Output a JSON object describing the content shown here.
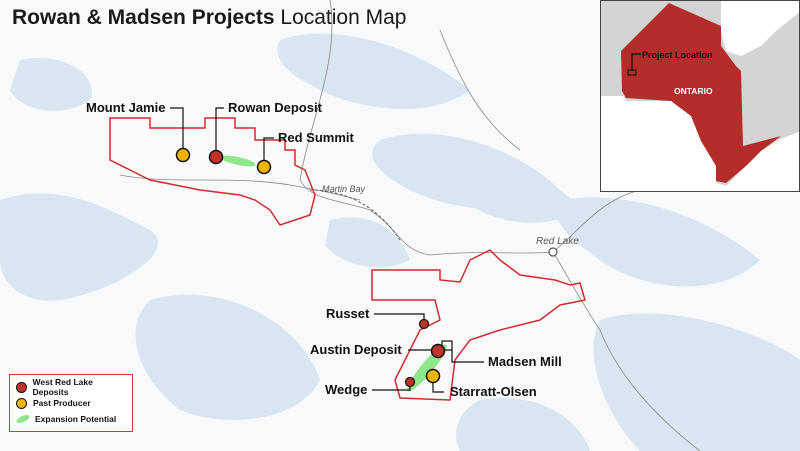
{
  "title": {
    "bold": "Rowan & Madsen Projects",
    "rest": " Location Map"
  },
  "colors": {
    "claims": "#d22b2b",
    "deposit": "#c0332b",
    "past_producer": "#f0b400",
    "expansion": "#8ee88a",
    "lakes": "#d9e6f1",
    "ontario": "#b32d2a"
  },
  "labels": {
    "mount_jamie": "Mount Jamie",
    "rowan": "Rowan Deposit",
    "red_summit": "Red Summit",
    "martin_bay": "Martin Bay",
    "red_lake": "Red Lake",
    "russet": "Russet",
    "austin": "Austin Deposit",
    "madsen_mill": "Madsen Mill",
    "starratt": "Starratt-Olsen",
    "wedge": "Wedge"
  },
  "legend": [
    {
      "label": "West Red Lake Deposits",
      "symbol": "red-circle"
    },
    {
      "label": "Past Producer",
      "symbol": "yellow-circle"
    },
    {
      "label": "Expansion Potential",
      "symbol": "green-ellipse"
    }
  ],
  "inset": {
    "project_location": "Project Location",
    "province": "ONTARIO"
  }
}
